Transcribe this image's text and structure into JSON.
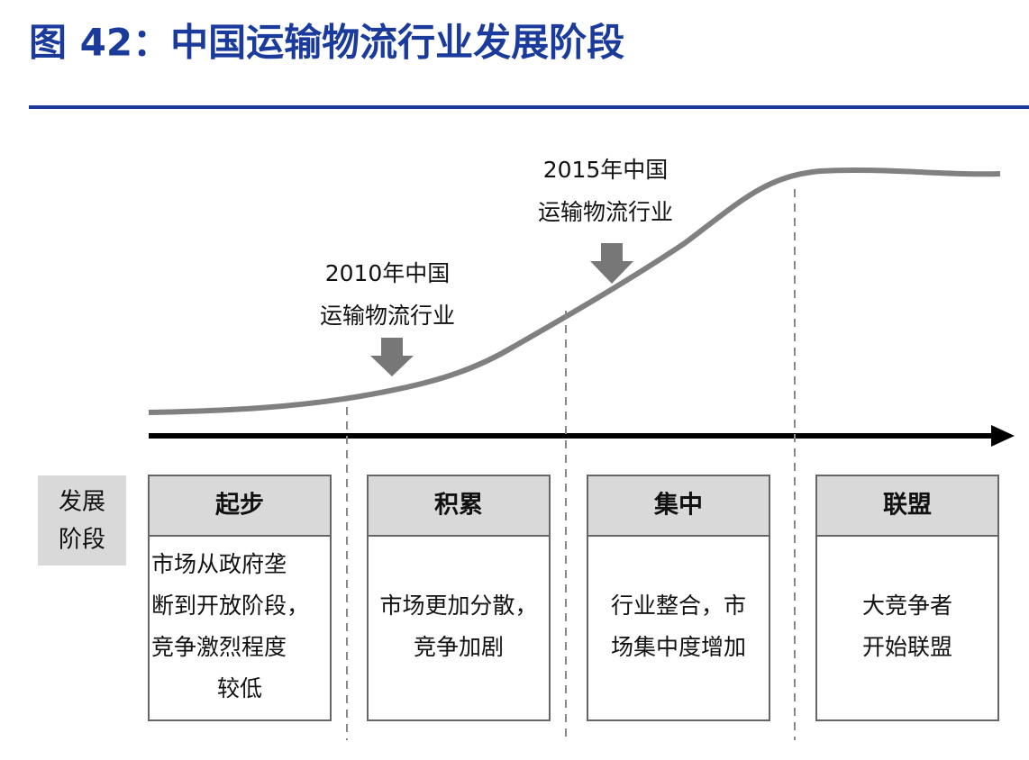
{
  "header": {
    "title": "图 42：中国运输物流行业发展阶段"
  },
  "annotations": [
    {
      "lines": [
        "2010年中国",
        "运输物流行业"
      ]
    },
    {
      "lines": [
        "2015年中国",
        "运输物流行业"
      ]
    }
  ],
  "stage_label": {
    "lines": [
      "发展",
      "阶段"
    ]
  },
  "stages": [
    {
      "name": "起步",
      "description": [
        "市场从政府垄",
        "断到开放阶段，",
        "竞争激烈程度",
        "较低"
      ]
    },
    {
      "name": "积累",
      "description": [
        "市场更加分散，",
        "竞争加剧"
      ]
    },
    {
      "name": "集中",
      "description": [
        "行业整合，市",
        "场集中度增加"
      ]
    },
    {
      "name": "联盟",
      "description": [
        "大竞争者",
        "开始联盟"
      ]
    }
  ]
}
